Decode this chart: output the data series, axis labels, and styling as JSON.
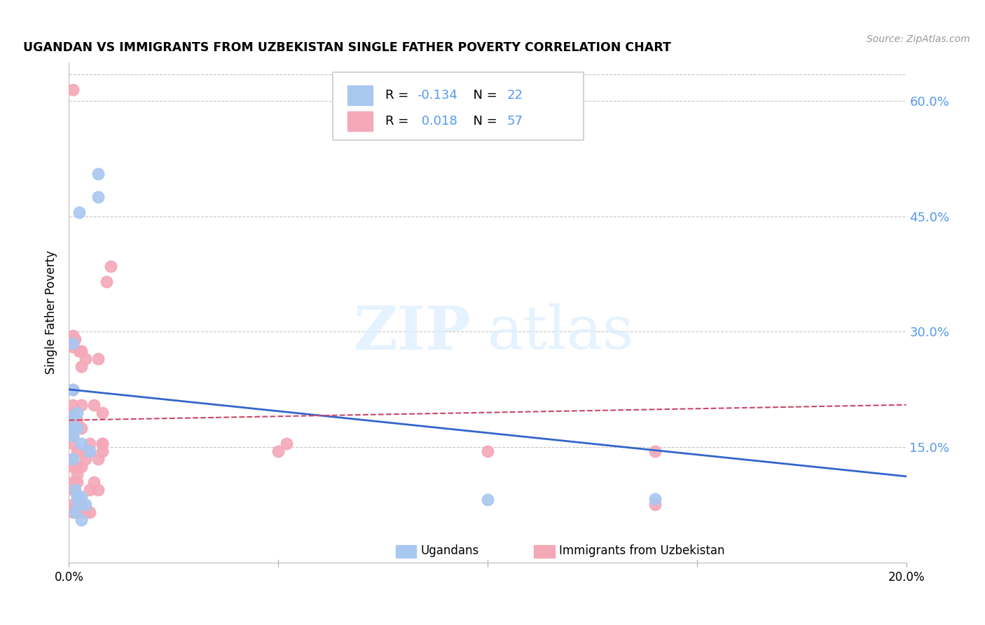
{
  "title": "UGANDAN VS IMMIGRANTS FROM UZBEKISTAN SINGLE FATHER POVERTY CORRELATION CHART",
  "source": "Source: ZipAtlas.com",
  "ylabel": "Single Father Poverty",
  "xlim": [
    0.0,
    0.2
  ],
  "ylim": [
    0.0,
    0.65
  ],
  "yticks": [
    0.15,
    0.3,
    0.45,
    0.6
  ],
  "xticks": [
    0.0,
    0.05,
    0.1,
    0.15,
    0.2
  ],
  "blue_R": "-0.134",
  "blue_N": "22",
  "pink_R": "0.018",
  "pink_N": "57",
  "blue_color": "#a8c8f0",
  "pink_color": "#f4a8b8",
  "blue_line_color": "#3366cc",
  "pink_line_color": "#cc4466",
  "blue_trend_x0": 0.0,
  "blue_trend_y0": 0.225,
  "blue_trend_x1": 0.2,
  "blue_trend_y1": 0.112,
  "pink_trend_x0": 0.0,
  "pink_trend_y0": 0.185,
  "pink_trend_x1": 0.2,
  "pink_trend_y1": 0.205,
  "legend_label_blue": "Ugandans",
  "legend_label_pink": "Immigrants from Uzbekistan",
  "watermark_zip": "ZIP",
  "watermark_atlas": "atlas",
  "blue_x": [
    0.001,
    0.001,
    0.001,
    0.001,
    0.001,
    0.001,
    0.0015,
    0.0015,
    0.002,
    0.002,
    0.002,
    0.002,
    0.0025,
    0.003,
    0.003,
    0.003,
    0.004,
    0.005,
    0.007,
    0.007,
    0.1,
    0.14
  ],
  "blue_y": [
    0.135,
    0.165,
    0.175,
    0.19,
    0.225,
    0.285,
    0.065,
    0.095,
    0.075,
    0.085,
    0.175,
    0.195,
    0.455,
    0.055,
    0.085,
    0.155,
    0.075,
    0.145,
    0.475,
    0.505,
    0.082,
    0.083
  ],
  "pink_x": [
    0.001,
    0.001,
    0.001,
    0.001,
    0.001,
    0.001,
    0.001,
    0.001,
    0.001,
    0.001,
    0.001,
    0.001,
    0.001,
    0.001,
    0.001,
    0.001,
    0.0015,
    0.002,
    0.002,
    0.002,
    0.002,
    0.002,
    0.002,
    0.002,
    0.002,
    0.002,
    0.0025,
    0.003,
    0.003,
    0.003,
    0.003,
    0.003,
    0.003,
    0.004,
    0.004,
    0.004,
    0.004,
    0.005,
    0.005,
    0.005,
    0.005,
    0.006,
    0.006,
    0.007,
    0.007,
    0.007,
    0.008,
    0.008,
    0.008,
    0.008,
    0.009,
    0.01,
    0.05,
    0.052,
    0.1,
    0.14,
    0.14
  ],
  "pink_y": [
    0.065,
    0.075,
    0.095,
    0.105,
    0.125,
    0.135,
    0.155,
    0.165,
    0.175,
    0.185,
    0.195,
    0.205,
    0.225,
    0.28,
    0.295,
    0.615,
    0.29,
    0.065,
    0.075,
    0.085,
    0.105,
    0.115,
    0.125,
    0.145,
    0.175,
    0.185,
    0.275,
    0.075,
    0.125,
    0.175,
    0.205,
    0.255,
    0.275,
    0.065,
    0.135,
    0.145,
    0.265,
    0.065,
    0.095,
    0.145,
    0.155,
    0.105,
    0.205,
    0.095,
    0.135,
    0.265,
    0.145,
    0.155,
    0.155,
    0.195,
    0.365,
    0.385,
    0.145,
    0.155,
    0.145,
    0.075,
    0.145
  ],
  "background_color": "#ffffff",
  "grid_color": "#c8c8c8",
  "right_axis_color": "#5599ee",
  "accent_color": "#5599ee"
}
